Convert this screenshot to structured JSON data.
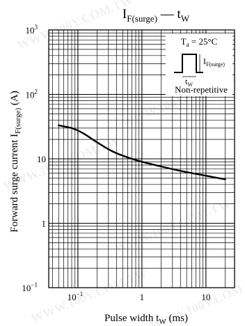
{
  "watermark": "WWW.100Y.COM.TW",
  "chart_data": {
    "type": "line",
    "title": {
      "main": "I",
      "sub": "F(surge)",
      "dash": " — t",
      "sub2": "W"
    },
    "xlabel": {
      "main": "Pulse width  t",
      "sub": "W",
      "unit": "  (ms)"
    },
    "ylabel": {
      "main": "Forward surge current  I",
      "sub": "F(surge)",
      "unit": "  (A)"
    },
    "x_scale": "log",
    "y_scale": "log",
    "xlim": [
      0.035,
      28
    ],
    "ylim": [
      0.1,
      1000
    ],
    "x_ticks": [
      {
        "value": 0.1,
        "base": "10",
        "exp": "−1"
      },
      {
        "value": 1,
        "base": "1",
        "exp": ""
      },
      {
        "value": 10,
        "base": "10",
        "exp": ""
      }
    ],
    "y_ticks": [
      {
        "value": 1000,
        "base": "10",
        "exp": "3"
      },
      {
        "value": 100,
        "base": "10",
        "exp": "2"
      },
      {
        "value": 10,
        "base": "10",
        "exp": ""
      },
      {
        "value": 1,
        "base": "1",
        "exp": ""
      },
      {
        "value": 0.1,
        "base": "10",
        "exp": "−1"
      }
    ],
    "grid": true,
    "series": [
      {
        "x": [
          0.05,
          0.08,
          0.12,
          0.2,
          0.35,
          0.6,
          1,
          2,
          4,
          8,
          20
        ],
        "y": [
          33,
          30,
          25,
          18,
          13,
          10.5,
          9,
          7.6,
          6.5,
          5.7,
          4.8
        ]
      }
    ],
    "inset": {
      "condition": "T",
      "condition_sub": "a",
      "condition_value": " = 25°C",
      "current_label": "I",
      "current_sub": "F(surge)",
      "width_label": "t",
      "width_sub": "W",
      "note": "Non-repetitive"
    }
  }
}
